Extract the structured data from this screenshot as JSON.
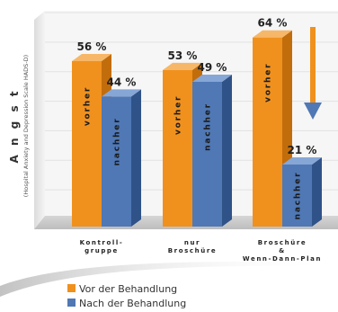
{
  "chart_data": {
    "type": "bar",
    "y_label": "A n g s t",
    "y_sublabel": "(Hospital Anxiety and Depression Scale HADS-D)",
    "categories": [
      [
        "Kontroll-",
        "gruppe"
      ],
      [
        "nur",
        "Broschüre"
      ],
      [
        "Broschüre",
        "&",
        "Wenn-Dann-Plan"
      ]
    ],
    "series": [
      {
        "name": "Vor der Behandlung",
        "bar_label": "vorher",
        "color": "#f0911e",
        "side_color": "#c26d0c",
        "top_color": "#f7b768",
        "values": [
          56,
          53,
          64
        ],
        "value_labels": [
          "56 %",
          "53 %",
          "64 %"
        ]
      },
      {
        "name": "Nach der Behandlung",
        "bar_label": "nachher",
        "color": "#4f78b5",
        "side_color": "#2f5288",
        "top_color": "#86a6d6",
        "values": [
          44,
          49,
          21
        ],
        "value_labels": [
          "44 %",
          "49 %",
          "21 %"
        ]
      }
    ],
    "ylim": [
      0,
      70
    ],
    "grid": true,
    "legend_position": "bottom-left",
    "annotation": "down-arrow-over-third-group",
    "arrow_color": "#f0911e"
  }
}
